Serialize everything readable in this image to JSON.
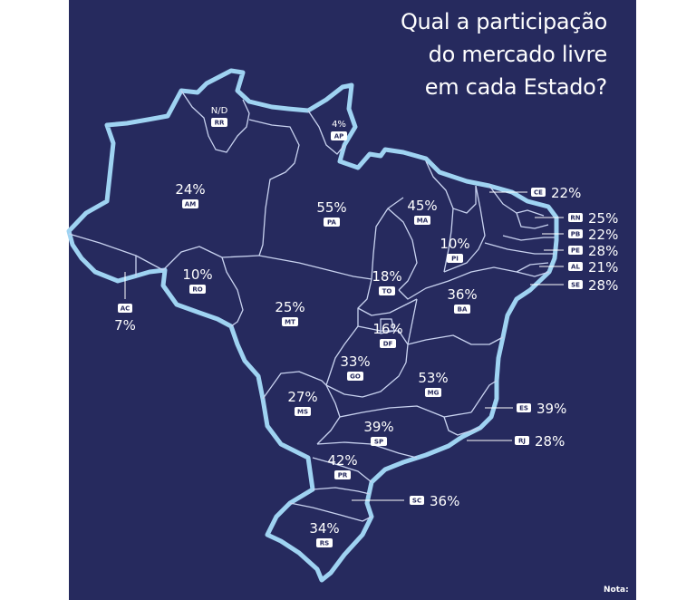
{
  "title_lines": [
    "Qual a participação",
    "do mercado livre",
    "em cada Estado?"
  ],
  "note": "Nota:",
  "colors": {
    "background": "#262a5e",
    "coast": "#9fd3f2",
    "borders": "#c9d3f0",
    "text": "#ffffff"
  },
  "states": [
    {
      "uf": "RR",
      "value": "N/D"
    },
    {
      "uf": "AP",
      "value": "4%"
    },
    {
      "uf": "AM",
      "value": "24%"
    },
    {
      "uf": "PA",
      "value": "55%"
    },
    {
      "uf": "MA",
      "value": "45%"
    },
    {
      "uf": "PI",
      "value": "10%"
    },
    {
      "uf": "RO",
      "value": "10%"
    },
    {
      "uf": "AC",
      "value": "7%"
    },
    {
      "uf": "TO",
      "value": "18%"
    },
    {
      "uf": "BA",
      "value": "36%"
    },
    {
      "uf": "MT",
      "value": "25%"
    },
    {
      "uf": "DF",
      "value": "16%"
    },
    {
      "uf": "GO",
      "value": "33%"
    },
    {
      "uf": "MG",
      "value": "53%"
    },
    {
      "uf": "MS",
      "value": "27%"
    },
    {
      "uf": "SP",
      "value": "39%"
    },
    {
      "uf": "PR",
      "value": "42%"
    },
    {
      "uf": "RS",
      "value": "34%"
    },
    {
      "uf": "CE",
      "value": "22%"
    },
    {
      "uf": "RN",
      "value": "25%"
    },
    {
      "uf": "PB",
      "value": "22%"
    },
    {
      "uf": "PE",
      "value": "28%"
    },
    {
      "uf": "AL",
      "value": "21%"
    },
    {
      "uf": "SE",
      "value": "28%"
    },
    {
      "uf": "ES",
      "value": "39%"
    },
    {
      "uf": "RJ",
      "value": "28%"
    },
    {
      "uf": "SC",
      "value": "36%"
    }
  ]
}
